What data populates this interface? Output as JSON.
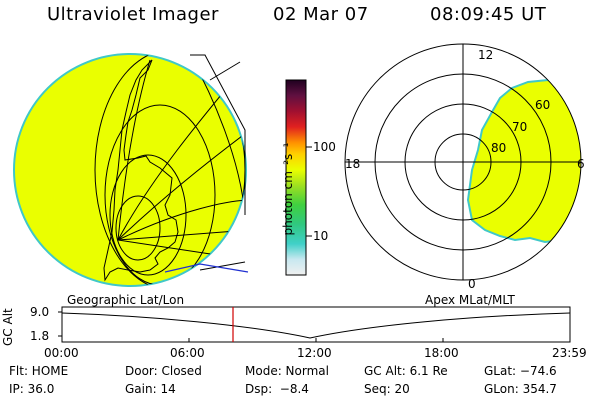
{
  "header": {
    "instrument": "Ultraviolet Imager",
    "date": "02 Mar 07",
    "time": "08:09:45 UT"
  },
  "colorbar": {
    "label": "photon cm⁻²s⁻¹",
    "ticks": [
      "100",
      "10"
    ]
  },
  "polar": {
    "mlt_labels": [
      "12",
      "18",
      "6",
      "0"
    ],
    "lat_labels": [
      "60",
      "70",
      "80"
    ]
  },
  "panels": {
    "geo_label": "Geographic Lat/Lon",
    "apex_label": "Apex MLat/MLT"
  },
  "altitude_plot": {
    "y_label": "GC Alt",
    "y_ticks": [
      "9.0",
      "1.8"
    ],
    "x_ticks": [
      "00:00",
      "06:00",
      "12:00",
      "18:00",
      "23:59"
    ]
  },
  "status": {
    "filter": "Flt: HOME",
    "door": "Door: Closed",
    "mode": "Mode: Normal",
    "gc_alt": "GC Alt: 6.1 Re",
    "glat": "GLat: −74.6",
    "ip": "IP: 36.0",
    "gain": "Gain: 14",
    "dsp": "Dsp:  −8.4",
    "seq": "Seq: 20",
    "glon": "GLon: 354.7"
  },
  "colors": {
    "aurora_fill": "#eaff00",
    "aurora_edge": "#40c8c8",
    "marker": "#d00000",
    "line_blue": "#2030d0"
  }
}
